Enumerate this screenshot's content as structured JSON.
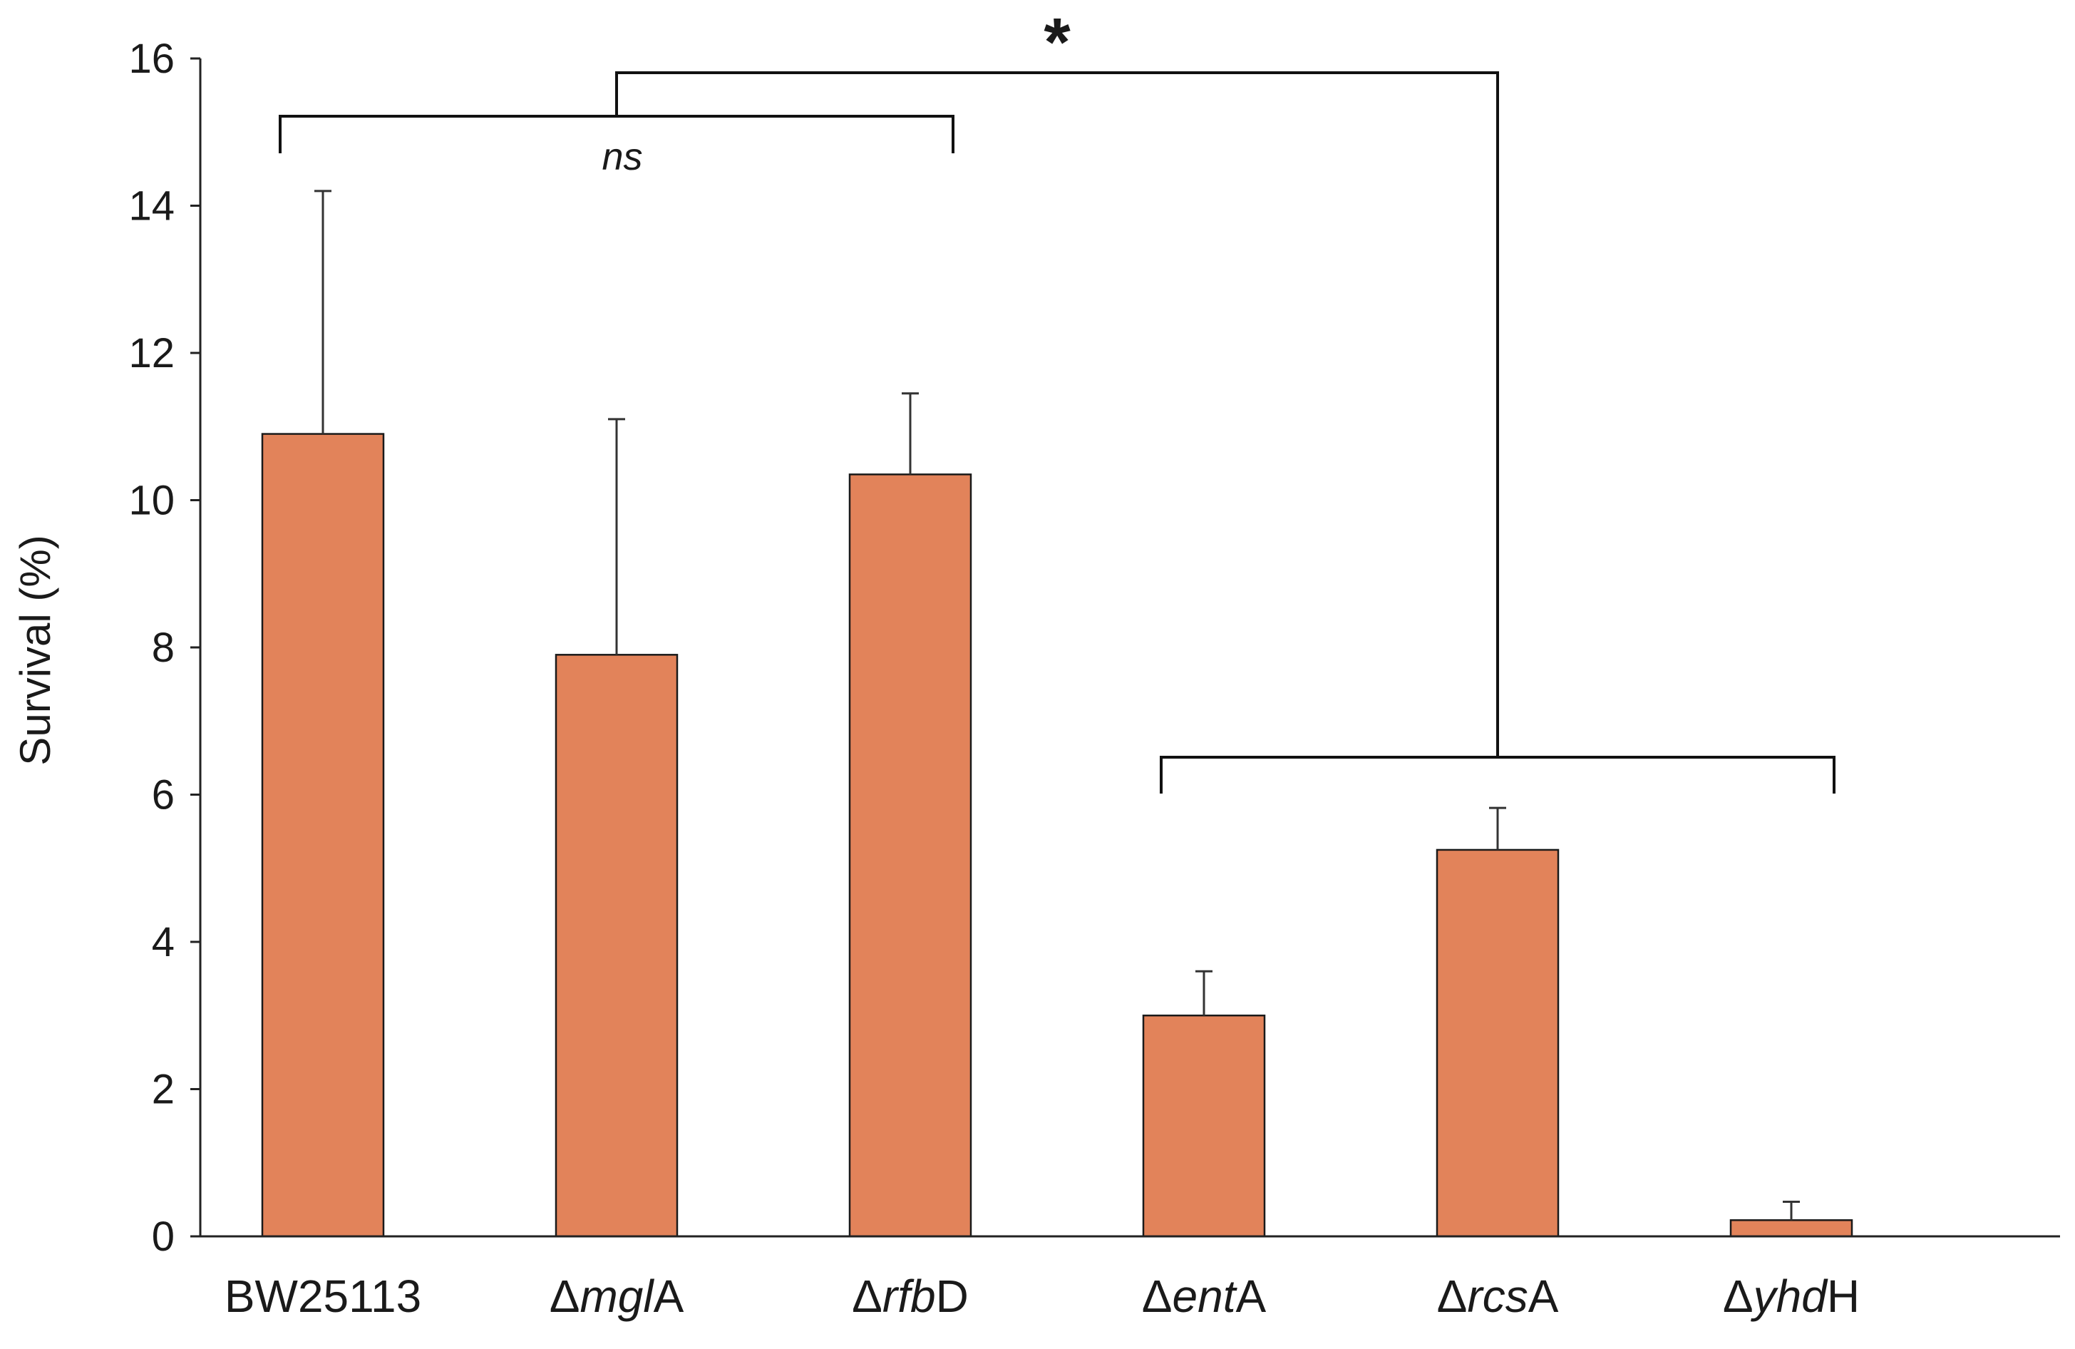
{
  "chart_data": {
    "type": "bar",
    "title": "",
    "xlabel": "",
    "ylabel": "Survival (%)",
    "ylim": [
      0,
      16
    ],
    "yticks": [
      0,
      2,
      4,
      6,
      8,
      10,
      12,
      14,
      16
    ],
    "grid": false,
    "categories": [
      {
        "prefix": "",
        "italic": "",
        "suffix": "BW25113"
      },
      {
        "prefix": "Δ",
        "italic": "mgl",
        "suffix": "A"
      },
      {
        "prefix": "Δ",
        "italic": "rfb",
        "suffix": "D"
      },
      {
        "prefix": "Δ",
        "italic": "ent",
        "suffix": "A"
      },
      {
        "prefix": "Δ",
        "italic": "rcs",
        "suffix": "A"
      },
      {
        "prefix": "Δ",
        "italic": "yhd",
        "suffix": "H"
      }
    ],
    "values": [
      10.9,
      7.9,
      10.35,
      3.0,
      5.25,
      0.22
    ],
    "errors": [
      3.3,
      3.2,
      1.1,
      0.6,
      0.57,
      0.25
    ],
    "bar_color": "#E2835A",
    "annotations": {
      "ns_label": "ns",
      "star_label": "*",
      "ns_group": [
        0,
        2
      ],
      "star_group": [
        3,
        5
      ]
    }
  }
}
